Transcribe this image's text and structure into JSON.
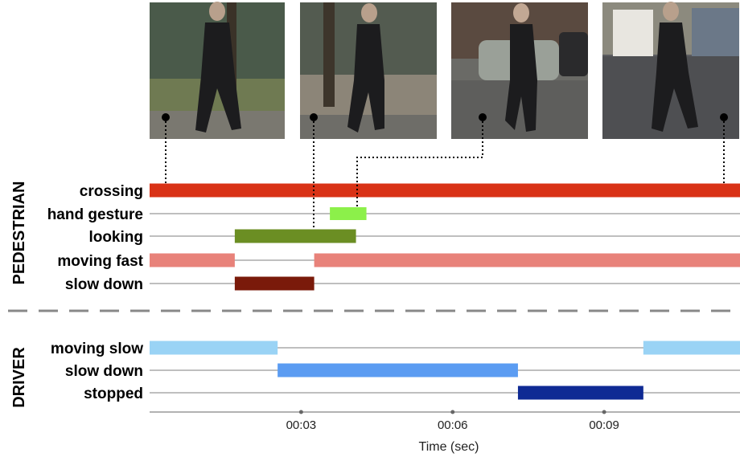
{
  "chart_data": {
    "type": "timeline",
    "groups": [
      {
        "name": "PEDESTRIAN",
        "rows": [
          {
            "label": "crossing",
            "color": "#d93216",
            "segments": [
              [
                0.0,
                11.3
              ]
            ]
          },
          {
            "label": "hand gesture",
            "color": "#8cf04a",
            "segments": [
              [
                3.45,
                4.15
              ]
            ]
          },
          {
            "label": "looking",
            "color": "#6b8e23",
            "segments": [
              [
                1.63,
                3.95
              ]
            ]
          },
          {
            "label": "moving fast",
            "color": "#e8827a",
            "segments": [
              [
                0.0,
                1.63
              ],
              [
                3.15,
                11.3
              ]
            ]
          },
          {
            "label": "slow down",
            "color": "#7a1a0a",
            "segments": [
              [
                1.63,
                3.15
              ]
            ]
          }
        ]
      },
      {
        "name": "DRIVER",
        "rows": [
          {
            "label": "moving slow",
            "color": "#9ad3f5",
            "segments": [
              [
                0.0,
                2.45
              ],
              [
                9.45,
                11.3
              ]
            ]
          },
          {
            "label": "slow down",
            "color": "#5b9cf2",
            "segments": [
              [
                2.45,
                7.05
              ]
            ]
          },
          {
            "label": "stopped",
            "color": "#0f2a94",
            "segments": [
              [
                7.05,
                9.45
              ]
            ]
          }
        ]
      }
    ],
    "x_ticks": [
      {
        "value": 2.9,
        "label": "00:03"
      },
      {
        "value": 5.8,
        "label": "00:06"
      },
      {
        "value": 8.7,
        "label": "00:09"
      }
    ],
    "xlabel": "Time (sec)",
    "xlim": [
      0,
      11.3
    ],
    "frames": [
      {
        "name": "frame-1",
        "time": 0.3
      },
      {
        "name": "frame-2",
        "time": 3.1
      },
      {
        "name": "frame-3",
        "time": 4.0
      },
      {
        "name": "frame-4",
        "time": 11.1
      }
    ]
  }
}
